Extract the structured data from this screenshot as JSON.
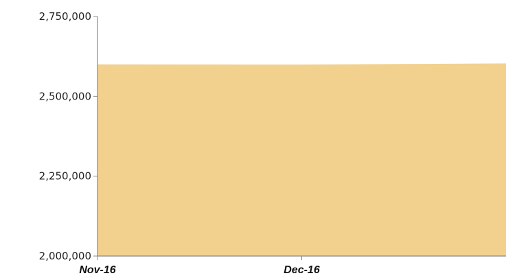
{
  "chart_data": {
    "type": "area",
    "title": "",
    "xlabel": "",
    "ylabel": "",
    "x": [
      "2016-11-01",
      "2016-11-15",
      "2016-12-01",
      "2016-12-15",
      "2016-12-31"
    ],
    "x_tick_labels": [
      "Nov-16",
      "Dec-16"
    ],
    "series": [
      {
        "values": [
          2600000,
          2599800,
          2599600,
          2601000,
          2603000
        ]
      }
    ],
    "ylim": [
      2000000,
      2750000
    ],
    "y_ticks": [
      2000000,
      2250000,
      2500000,
      2750000
    ],
    "y_tick_labels": [
      "2,000,000",
      "2,250,000",
      "2,500,000",
      "2,750,000"
    ],
    "grid": false,
    "legend": "none",
    "colors": {
      "area_fill": "#F2D18F",
      "axis": "#888888"
    }
  }
}
